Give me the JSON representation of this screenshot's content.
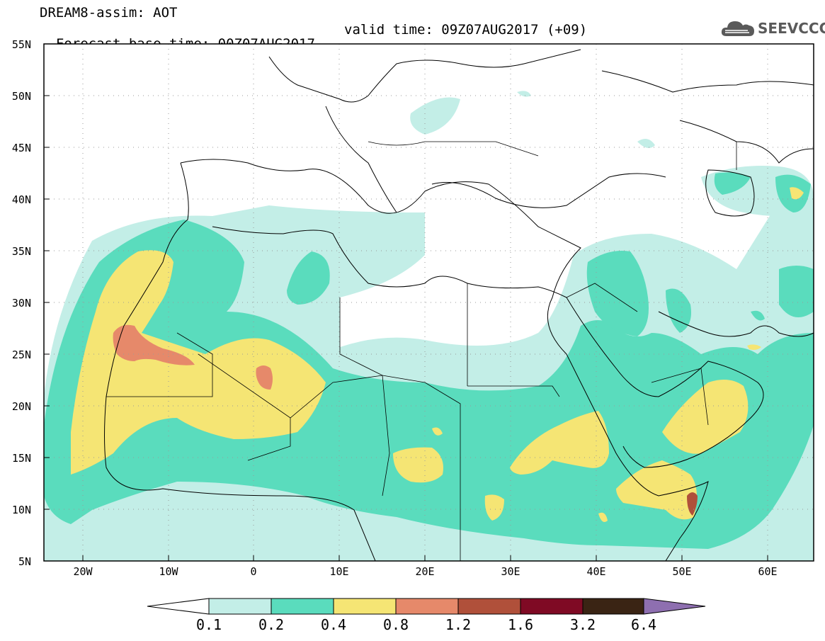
{
  "header": {
    "line1": "DREAM8-assim: AOT",
    "base_time": "Forecast base time: 00Z07AUG2017",
    "valid_time": "valid time: 09Z07AUG2017 (+09)"
  },
  "logo": {
    "text": "SEEVCCC",
    "icon": "cloud-logo-icon"
  },
  "map": {
    "lon_range": [
      -25,
      65
    ],
    "lat_range": [
      5,
      55
    ],
    "lat_labels": [
      "55N",
      "50N",
      "45N",
      "40N",
      "35N",
      "30N",
      "25N",
      "20N",
      "15N",
      "10N",
      "5N"
    ],
    "lon_labels": [
      "20W",
      "10W",
      "0",
      "10E",
      "20E",
      "30E",
      "40E",
      "50E",
      "60E"
    ]
  },
  "colorbar": {
    "levels": [
      "0.1",
      "0.2",
      "0.4",
      "0.8",
      "1.2",
      "1.6",
      "3.2",
      "6.4"
    ],
    "colors": [
      "#ffffff",
      "#c3eee7",
      "#5adcbd",
      "#f5e574",
      "#e6896a",
      "#b0503a",
      "#7f0a24",
      "#3a2414",
      "#8e6fb0"
    ]
  }
}
